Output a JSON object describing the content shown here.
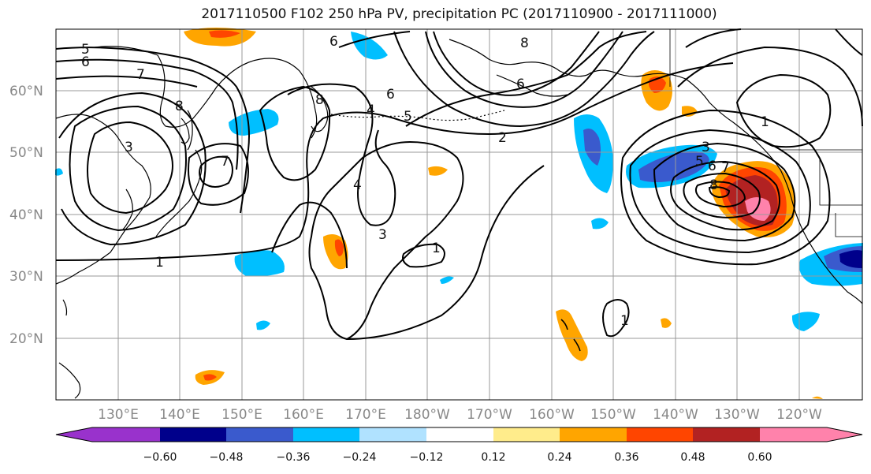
{
  "title": "2017110500 F102 250 hPa PV, precipitation PC (2017110900 - 2017111000)",
  "map": {
    "lat_labels": [
      "60°N",
      "50°N",
      "40°N",
      "30°N",
      "20°N"
    ],
    "lon_labels": [
      "130°E",
      "140°E",
      "150°E",
      "160°E",
      "170°E",
      "180°W",
      "170°W",
      "160°W",
      "150°W",
      "140°W",
      "130°W",
      "120°W"
    ],
    "contour_labels": [
      "1",
      "2",
      "3",
      "4",
      "5",
      "6",
      "7",
      "8"
    ],
    "coastline_color": "#000000",
    "gridline_color": "#999999"
  },
  "colorbar": {
    "ticks": [
      "−0.60",
      "−0.48",
      "−0.36",
      "−0.24",
      "−0.12",
      "0.12",
      "0.24",
      "0.36",
      "0.48",
      "0.60"
    ],
    "colors": [
      "#9932cc",
      "#00008b",
      "#3a5acd",
      "#00bfff",
      "#b0e2ff",
      "#ffffff",
      "#ffec8b",
      "#ffa500",
      "#ff4500",
      "#b22222",
      "#ff82ab"
    ]
  }
}
